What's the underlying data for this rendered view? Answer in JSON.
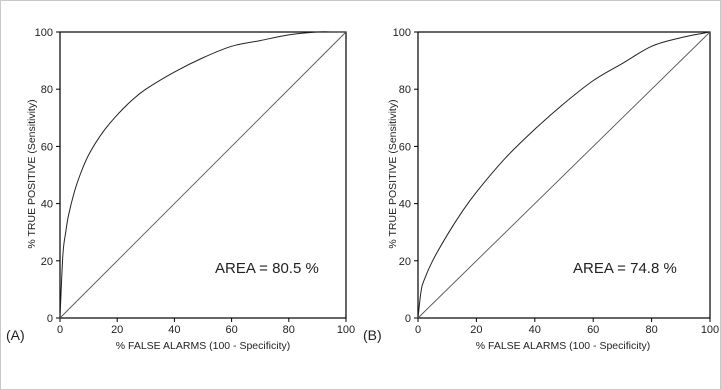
{
  "chart_data": [
    {
      "type": "line",
      "panel_label": "(A)",
      "xlabel": "% FALSE ALARMS (100 - Specificity)",
      "ylabel": "% TRUE POSITIVE (Sensitivity)",
      "xlim": [
        0,
        100
      ],
      "ylim": [
        0,
        100
      ],
      "x_ticks": [
        0,
        20,
        40,
        60,
        80,
        100
      ],
      "y_ticks": [
        0,
        20,
        40,
        60,
        80,
        100
      ],
      "annotation": "AREA = 80.5 %",
      "grid": false,
      "series": [
        {
          "role": "roc-curve",
          "x": [
            0,
            1,
            2,
            3,
            5,
            7,
            10,
            15,
            20,
            25,
            30,
            40,
            50,
            60,
            70,
            80,
            90,
            95,
            100
          ],
          "y": [
            0,
            22,
            30,
            36,
            44,
            50,
            57,
            65,
            71,
            76,
            80,
            86,
            91,
            95,
            97,
            99,
            100,
            100,
            100
          ]
        },
        {
          "role": "chance-diagonal",
          "x": [
            0,
            100
          ],
          "y": [
            0,
            100
          ]
        }
      ]
    },
    {
      "type": "line",
      "panel_label": "(B)",
      "xlabel": "% FALSE ALARMS (100 - Specificity)",
      "ylabel": "% TRUE POSITIVE (Sensitivity)",
      "xlim": [
        0,
        100
      ],
      "ylim": [
        0,
        100
      ],
      "x_ticks": [
        0,
        20,
        40,
        60,
        80,
        100
      ],
      "y_ticks": [
        0,
        20,
        40,
        60,
        80,
        100
      ],
      "annotation": "AREA = 74.8 %",
      "grid": false,
      "series": [
        {
          "role": "roc-curve",
          "x": [
            0,
            1,
            2,
            5,
            10,
            15,
            20,
            30,
            40,
            50,
            60,
            70,
            80,
            90,
            100
          ],
          "y": [
            0,
            9,
            13,
            20,
            29,
            37,
            44,
            56,
            66,
            75,
            83,
            89,
            95,
            98,
            100
          ]
        },
        {
          "role": "chance-diagonal",
          "x": [
            0,
            100
          ],
          "y": [
            0,
            100
          ]
        }
      ]
    }
  ],
  "colors": {
    "curve": "#222222",
    "diagonal": "#555555",
    "axes": "#000000",
    "frame": "#c9c9c9"
  }
}
